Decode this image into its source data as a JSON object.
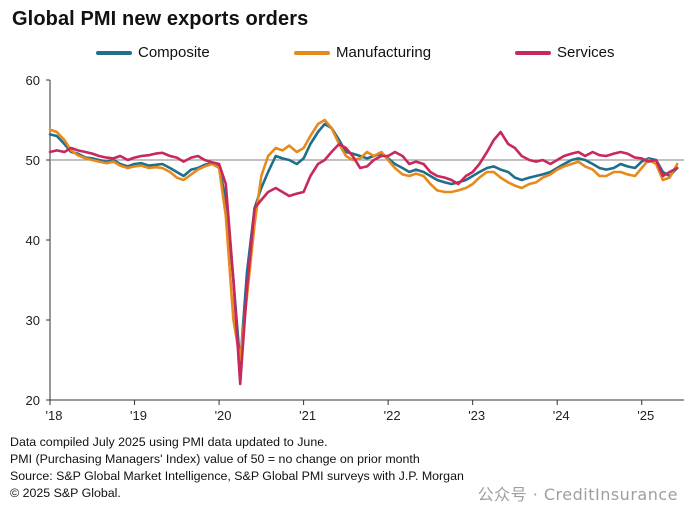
{
  "chart_data": {
    "type": "line",
    "title": "Global PMI new exports orders",
    "x_tick_labels": [
      "'18",
      "'19",
      "'20",
      "'21",
      "'22",
      "'23",
      "'24",
      "'25"
    ],
    "y_tick_labels": [
      "20",
      "30",
      "40",
      "50",
      "60"
    ],
    "ylim": [
      20,
      60
    ],
    "xlim": [
      2018.0,
      2025.5
    ],
    "reference_line": 50,
    "grid": false,
    "legend_position": "top",
    "series": [
      {
        "name": "Composite",
        "color": "#1f6f8b",
        "x": [
          2018.0,
          2018.08,
          2018.17,
          2018.25,
          2018.33,
          2018.42,
          2018.5,
          2018.58,
          2018.67,
          2018.75,
          2018.83,
          2018.92,
          2019.0,
          2019.08,
          2019.17,
          2019.25,
          2019.33,
          2019.42,
          2019.5,
          2019.58,
          2019.67,
          2019.75,
          2019.83,
          2019.92,
          2020.0,
          2020.08,
          2020.17,
          2020.25,
          2020.33,
          2020.42,
          2020.5,
          2020.58,
          2020.67,
          2020.75,
          2020.83,
          2020.92,
          2021.0,
          2021.08,
          2021.17,
          2021.25,
          2021.33,
          2021.42,
          2021.5,
          2021.58,
          2021.67,
          2021.75,
          2021.83,
          2021.92,
          2022.0,
          2022.08,
          2022.17,
          2022.25,
          2022.33,
          2022.42,
          2022.5,
          2022.58,
          2022.67,
          2022.75,
          2022.83,
          2022.92,
          2023.0,
          2023.08,
          2023.17,
          2023.25,
          2023.33,
          2023.42,
          2023.5,
          2023.58,
          2023.67,
          2023.75,
          2023.83,
          2023.92,
          2024.0,
          2024.08,
          2024.17,
          2024.25,
          2024.33,
          2024.42,
          2024.5,
          2024.58,
          2024.67,
          2024.75,
          2024.83,
          2024.92,
          2025.0,
          2025.08,
          2025.17,
          2025.25,
          2025.33,
          2025.42
        ],
        "values": [
          53.2,
          53.0,
          52.0,
          51.0,
          50.8,
          50.3,
          50.2,
          50.0,
          49.8,
          50.0,
          49.5,
          49.2,
          49.5,
          49.6,
          49.3,
          49.4,
          49.5,
          49.0,
          48.5,
          48.0,
          48.8,
          49.0,
          49.4,
          49.6,
          49.2,
          45.0,
          35.0,
          24.5,
          36.0,
          44.0,
          46.5,
          48.5,
          50.5,
          50.2,
          50.0,
          49.5,
          50.2,
          52.0,
          53.5,
          54.5,
          54.0,
          52.5,
          51.0,
          50.8,
          50.5,
          50.2,
          50.5,
          50.8,
          50.2,
          49.5,
          49.0,
          48.5,
          48.8,
          48.5,
          48.0,
          47.5,
          47.2,
          47.0,
          47.2,
          47.5,
          48.0,
          48.5,
          49.0,
          49.2,
          48.8,
          48.5,
          47.8,
          47.5,
          47.8,
          48.0,
          48.2,
          48.5,
          49.0,
          49.5,
          50.0,
          50.2,
          50.0,
          49.5,
          49.0,
          48.8,
          49.0,
          49.5,
          49.2,
          49.0,
          49.8,
          50.2,
          50.0,
          48.5,
          48.0,
          49.0
        ]
      },
      {
        "name": "Manufacturing",
        "color": "#e8891c",
        "x": [
          2018.0,
          2018.08,
          2018.17,
          2018.25,
          2018.33,
          2018.42,
          2018.5,
          2018.58,
          2018.67,
          2018.75,
          2018.83,
          2018.92,
          2019.0,
          2019.08,
          2019.17,
          2019.25,
          2019.33,
          2019.42,
          2019.5,
          2019.58,
          2019.67,
          2019.75,
          2019.83,
          2019.92,
          2020.0,
          2020.08,
          2020.17,
          2020.25,
          2020.33,
          2020.42,
          2020.5,
          2020.58,
          2020.67,
          2020.75,
          2020.83,
          2020.92,
          2021.0,
          2021.08,
          2021.17,
          2021.25,
          2021.33,
          2021.42,
          2021.5,
          2021.58,
          2021.67,
          2021.75,
          2021.83,
          2021.92,
          2022.0,
          2022.08,
          2022.17,
          2022.25,
          2022.33,
          2022.42,
          2022.5,
          2022.58,
          2022.67,
          2022.75,
          2022.83,
          2022.92,
          2023.0,
          2023.08,
          2023.17,
          2023.25,
          2023.33,
          2023.42,
          2023.5,
          2023.58,
          2023.67,
          2023.75,
          2023.83,
          2023.92,
          2024.0,
          2024.08,
          2024.17,
          2024.25,
          2024.33,
          2024.42,
          2024.5,
          2024.58,
          2024.67,
          2024.75,
          2024.83,
          2024.92,
          2025.0,
          2025.08,
          2025.17,
          2025.25,
          2025.33,
          2025.42
        ],
        "values": [
          53.8,
          53.5,
          52.5,
          51.2,
          50.6,
          50.2,
          50.0,
          49.8,
          49.6,
          49.8,
          49.3,
          49.0,
          49.2,
          49.3,
          49.0,
          49.1,
          49.0,
          48.5,
          47.8,
          47.5,
          48.2,
          48.8,
          49.2,
          49.5,
          49.0,
          43.0,
          30.0,
          25.0,
          33.0,
          42.0,
          48.0,
          50.5,
          51.5,
          51.2,
          51.8,
          51.0,
          51.5,
          53.0,
          54.5,
          55.0,
          54.0,
          52.0,
          50.5,
          50.0,
          50.2,
          51.0,
          50.5,
          51.0,
          50.0,
          49.0,
          48.2,
          48.0,
          48.3,
          48.0,
          47.0,
          46.2,
          46.0,
          46.0,
          46.2,
          46.5,
          47.0,
          47.8,
          48.5,
          48.5,
          47.8,
          47.2,
          46.8,
          46.5,
          47.0,
          47.2,
          47.8,
          48.2,
          48.8,
          49.2,
          49.5,
          49.8,
          49.2,
          48.8,
          48.0,
          48.0,
          48.5,
          48.5,
          48.2,
          48.0,
          49.0,
          50.0,
          49.5,
          47.5,
          47.8,
          49.5
        ]
      },
      {
        "name": "Services",
        "color": "#c8285c",
        "x": [
          2018.0,
          2018.08,
          2018.17,
          2018.25,
          2018.33,
          2018.42,
          2018.5,
          2018.58,
          2018.67,
          2018.75,
          2018.83,
          2018.92,
          2019.0,
          2019.08,
          2019.17,
          2019.25,
          2019.33,
          2019.42,
          2019.5,
          2019.58,
          2019.67,
          2019.75,
          2019.83,
          2019.92,
          2020.0,
          2020.08,
          2020.17,
          2020.25,
          2020.33,
          2020.42,
          2020.5,
          2020.58,
          2020.67,
          2020.75,
          2020.83,
          2020.92,
          2021.0,
          2021.08,
          2021.17,
          2021.25,
          2021.33,
          2021.42,
          2021.5,
          2021.58,
          2021.67,
          2021.75,
          2021.83,
          2021.92,
          2022.0,
          2022.08,
          2022.17,
          2022.25,
          2022.33,
          2022.42,
          2022.5,
          2022.58,
          2022.67,
          2022.75,
          2022.83,
          2022.92,
          2023.0,
          2023.08,
          2023.17,
          2023.25,
          2023.33,
          2023.42,
          2023.5,
          2023.58,
          2023.67,
          2023.75,
          2023.83,
          2023.92,
          2024.0,
          2024.08,
          2024.17,
          2024.25,
          2024.33,
          2024.42,
          2024.5,
          2024.58,
          2024.67,
          2024.75,
          2024.83,
          2024.92,
          2025.0,
          2025.08,
          2025.17,
          2025.25,
          2025.33,
          2025.42
        ],
        "values": [
          51.0,
          51.2,
          51.0,
          51.5,
          51.2,
          51.0,
          50.8,
          50.5,
          50.3,
          50.2,
          50.5,
          50.0,
          50.3,
          50.5,
          50.6,
          50.8,
          50.9,
          50.5,
          50.3,
          49.8,
          50.3,
          50.5,
          50.0,
          49.7,
          49.5,
          47.0,
          35.0,
          22.0,
          34.0,
          44.0,
          45.0,
          46.0,
          46.5,
          46.0,
          45.5,
          45.8,
          46.0,
          48.0,
          49.5,
          50.0,
          51.0,
          52.0,
          51.5,
          50.5,
          49.0,
          49.2,
          50.0,
          50.5,
          50.5,
          51.0,
          50.5,
          49.5,
          49.8,
          49.5,
          48.5,
          48.0,
          47.8,
          47.5,
          47.0,
          48.0,
          48.5,
          49.5,
          51.0,
          52.5,
          53.5,
          52.0,
          51.5,
          50.5,
          50.0,
          49.8,
          50.0,
          49.5,
          50.0,
          50.5,
          50.8,
          51.0,
          50.5,
          51.0,
          50.6,
          50.5,
          50.8,
          51.0,
          50.8,
          50.3,
          50.2,
          49.8,
          50.0,
          48.0,
          48.5,
          49.0
        ]
      }
    ]
  },
  "footnotes": [
    "Data compiled July 2025 using PMI data updated to June.",
    "PMI (Purchasing Managers' Index) value of 50 = no change on prior month",
    "Source: S&P Global Market Intelligence, S&P Global PMI surveys with J.P. Morgan",
    "© 2025 S&P Global."
  ],
  "watermark": "公众号 · CreditInsurance"
}
